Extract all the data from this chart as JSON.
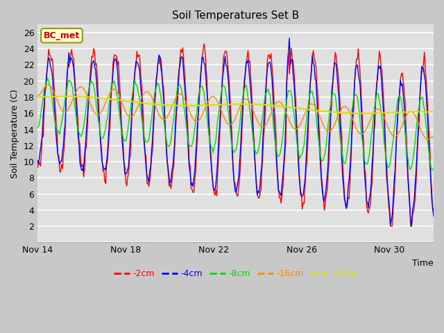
{
  "title": "Soil Temperatures Set B",
  "xlabel": "Time",
  "ylabel": "Soil Temperature (C)",
  "annotation": "BC_met",
  "ylim": [
    0,
    27
  ],
  "yticks": [
    0,
    2,
    4,
    6,
    8,
    10,
    12,
    14,
    16,
    18,
    20,
    22,
    24,
    26
  ],
  "xtick_labels": [
    "Nov 14",
    "Nov 18",
    "Nov 22",
    "Nov 26",
    "Nov 30"
  ],
  "xtick_positions": [
    0,
    4,
    8,
    12,
    16
  ],
  "xlim": [
    0,
    18
  ],
  "series": [
    {
      "label": "-2cm",
      "color": "#ff0000",
      "lw": 1.0
    },
    {
      "label": "-4cm",
      "color": "#0000ff",
      "lw": 1.0
    },
    {
      "label": "-8cm",
      "color": "#00dd00",
      "lw": 1.0
    },
    {
      "label": "-16cm",
      "color": "#ff8800",
      "lw": 1.0
    },
    {
      "label": "-32cm",
      "color": "#dddd00",
      "lw": 1.5
    }
  ],
  "fig_bg_color": "#c8c8c8",
  "plot_bg_color": "#e0e0e0",
  "grid_color": "#ffffff",
  "legend_bg": "#ffffcc",
  "legend_border": "#999900"
}
